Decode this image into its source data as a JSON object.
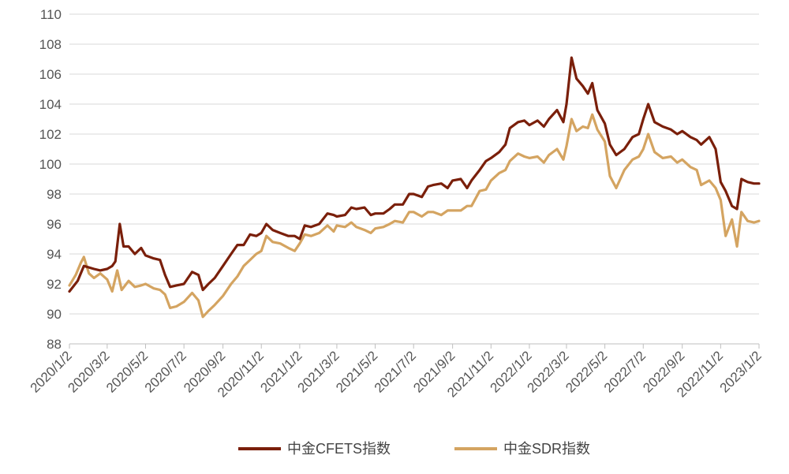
{
  "chart_data": {
    "type": "line",
    "title": "",
    "xlabel": "",
    "ylabel": "",
    "ylim": [
      88,
      110
    ],
    "yticks": [
      88,
      90,
      92,
      94,
      96,
      98,
      100,
      102,
      104,
      106,
      108,
      110
    ],
    "x_tick_labels": [
      "2020/1/2",
      "2020/3/2",
      "2020/5/2",
      "2020/7/2",
      "2020/9/2",
      "2020/11/2",
      "2021/1/2",
      "2021/3/2",
      "2021/5/2",
      "2021/7/2",
      "2021/9/2",
      "2021/11/2",
      "2022/1/2",
      "2022/3/2",
      "2022/5/2",
      "2022/7/2",
      "2022/9/2",
      "2022/11/2",
      "2023/1/2"
    ],
    "grid": true,
    "legend_position": "bottom",
    "series": [
      {
        "name": "中金CFETS指数",
        "color": "#7a1f0a",
        "points": [
          [
            "2020/1/2",
            91.5
          ],
          [
            "2020/1/15",
            92.2
          ],
          [
            "2020/1/25",
            93.2
          ],
          [
            "2020/2/10",
            93.0
          ],
          [
            "2020/2/20",
            92.9
          ],
          [
            "2020/3/2",
            93.0
          ],
          [
            "2020/3/10",
            93.2
          ],
          [
            "2020/3/15",
            93.5
          ],
          [
            "2020/3/22",
            96.0
          ],
          [
            "2020/3/28",
            94.5
          ],
          [
            "2020/4/5",
            94.5
          ],
          [
            "2020/4/15",
            94.0
          ],
          [
            "2020/4/25",
            94.4
          ],
          [
            "2020/5/2",
            93.9
          ],
          [
            "2020/5/15",
            93.7
          ],
          [
            "2020/5/25",
            93.6
          ],
          [
            "2020/6/2",
            92.6
          ],
          [
            "2020/6/10",
            91.8
          ],
          [
            "2020/6/20",
            91.9
          ],
          [
            "2020/7/2",
            92.0
          ],
          [
            "2020/7/15",
            92.8
          ],
          [
            "2020/7/25",
            92.6
          ],
          [
            "2020/8/1",
            91.6
          ],
          [
            "2020/8/10",
            92.0
          ],
          [
            "2020/8/20",
            92.4
          ],
          [
            "2020/9/2",
            93.2
          ],
          [
            "2020/9/15",
            94.0
          ],
          [
            "2020/9/25",
            94.6
          ],
          [
            "2020/10/5",
            94.6
          ],
          [
            "2020/10/15",
            95.3
          ],
          [
            "2020/10/25",
            95.2
          ],
          [
            "2020/11/2",
            95.4
          ],
          [
            "2020/11/10",
            96.0
          ],
          [
            "2020/11/20",
            95.6
          ],
          [
            "2020/12/2",
            95.4
          ],
          [
            "2020/12/15",
            95.2
          ],
          [
            "2020/12/25",
            95.2
          ],
          [
            "2021/1/2",
            95.0
          ],
          [
            "2021/1/10",
            95.9
          ],
          [
            "2021/1/20",
            95.8
          ],
          [
            "2021/2/2",
            96.0
          ],
          [
            "2021/2/15",
            96.7
          ],
          [
            "2021/2/25",
            96.6
          ],
          [
            "2021/3/2",
            96.5
          ],
          [
            "2021/3/15",
            96.6
          ],
          [
            "2021/3/25",
            97.1
          ],
          [
            "2021/4/2",
            97.0
          ],
          [
            "2021/4/15",
            97.1
          ],
          [
            "2021/4/25",
            96.6
          ],
          [
            "2021/5/2",
            96.7
          ],
          [
            "2021/5/15",
            96.7
          ],
          [
            "2021/5/25",
            97.0
          ],
          [
            "2021/6/2",
            97.3
          ],
          [
            "2021/6/15",
            97.3
          ],
          [
            "2021/6/25",
            98.0
          ],
          [
            "2021/7/2",
            98.0
          ],
          [
            "2021/7/15",
            97.8
          ],
          [
            "2021/7/25",
            98.5
          ],
          [
            "2021/8/2",
            98.6
          ],
          [
            "2021/8/15",
            98.7
          ],
          [
            "2021/8/25",
            98.4
          ],
          [
            "2021/9/2",
            98.9
          ],
          [
            "2021/9/15",
            99.0
          ],
          [
            "2021/9/25",
            98.4
          ],
          [
            "2021/10/2",
            98.9
          ],
          [
            "2021/10/15",
            99.6
          ],
          [
            "2021/10/25",
            100.2
          ],
          [
            "2021/11/2",
            100.4
          ],
          [
            "2021/11/15",
            100.8
          ],
          [
            "2021/11/25",
            101.3
          ],
          [
            "2021/12/2",
            102.4
          ],
          [
            "2021/12/15",
            102.8
          ],
          [
            "2021/12/25",
            102.9
          ],
          [
            "2022/1/2",
            102.6
          ],
          [
            "2022/1/15",
            102.9
          ],
          [
            "2022/1/25",
            102.5
          ],
          [
            "2022/2/2",
            103.0
          ],
          [
            "2022/2/15",
            103.6
          ],
          [
            "2022/2/25",
            102.8
          ],
          [
            "2022/3/2",
            104.0
          ],
          [
            "2022/3/10",
            107.1
          ],
          [
            "2022/3/18",
            105.7
          ],
          [
            "2022/3/28",
            105.2
          ],
          [
            "2022/4/5",
            104.7
          ],
          [
            "2022/4/12",
            105.4
          ],
          [
            "2022/4/20",
            103.6
          ],
          [
            "2022/5/2",
            102.7
          ],
          [
            "2022/5/10",
            101.3
          ],
          [
            "2022/5/20",
            100.6
          ],
          [
            "2022/6/2",
            101.0
          ],
          [
            "2022/6/15",
            101.8
          ],
          [
            "2022/6/25",
            102.0
          ],
          [
            "2022/7/2",
            103.0
          ],
          [
            "2022/7/10",
            104.0
          ],
          [
            "2022/7/20",
            102.8
          ],
          [
            "2022/8/2",
            102.5
          ],
          [
            "2022/8/15",
            102.3
          ],
          [
            "2022/8/25",
            102.0
          ],
          [
            "2022/9/2",
            102.2
          ],
          [
            "2022/9/15",
            101.8
          ],
          [
            "2022/9/25",
            101.6
          ],
          [
            "2022/10/2",
            101.3
          ],
          [
            "2022/10/15",
            101.8
          ],
          [
            "2022/10/25",
            101.0
          ],
          [
            "2022/11/2",
            98.8
          ],
          [
            "2022/11/10",
            98.2
          ],
          [
            "2022/11/20",
            97.2
          ],
          [
            "2022/11/28",
            97.0
          ],
          [
            "2022/12/5",
            99.0
          ],
          [
            "2022/12/15",
            98.8
          ],
          [
            "2022/12/25",
            98.7
          ],
          [
            "2023/1/2",
            98.7
          ]
        ]
      },
      {
        "name": "中金SDR指数",
        "color": "#d4a461",
        "points": [
          [
            "2020/1/2",
            91.9
          ],
          [
            "2020/1/12",
            92.6
          ],
          [
            "2020/1/20",
            93.4
          ],
          [
            "2020/1/25",
            93.8
          ],
          [
            "2020/2/2",
            92.7
          ],
          [
            "2020/2/10",
            92.4
          ],
          [
            "2020/2/20",
            92.7
          ],
          [
            "2020/3/2",
            92.3
          ],
          [
            "2020/3/10",
            91.5
          ],
          [
            "2020/3/18",
            92.9
          ],
          [
            "2020/3/25",
            91.6
          ],
          [
            "2020/4/5",
            92.2
          ],
          [
            "2020/4/15",
            91.8
          ],
          [
            "2020/4/25",
            91.9
          ],
          [
            "2020/5/2",
            92.0
          ],
          [
            "2020/5/15",
            91.7
          ],
          [
            "2020/5/25",
            91.6
          ],
          [
            "2020/6/2",
            91.3
          ],
          [
            "2020/6/10",
            90.4
          ],
          [
            "2020/6/20",
            90.5
          ],
          [
            "2020/7/2",
            90.8
          ],
          [
            "2020/7/15",
            91.4
          ],
          [
            "2020/7/25",
            90.9
          ],
          [
            "2020/8/1",
            89.8
          ],
          [
            "2020/8/10",
            90.2
          ],
          [
            "2020/8/20",
            90.6
          ],
          [
            "2020/9/2",
            91.2
          ],
          [
            "2020/9/15",
            92.0
          ],
          [
            "2020/9/25",
            92.5
          ],
          [
            "2020/10/5",
            93.2
          ],
          [
            "2020/10/15",
            93.6
          ],
          [
            "2020/10/25",
            94.0
          ],
          [
            "2020/11/2",
            94.2
          ],
          [
            "2020/11/10",
            95.2
          ],
          [
            "2020/11/20",
            94.8
          ],
          [
            "2020/12/2",
            94.7
          ],
          [
            "2020/12/15",
            94.4
          ],
          [
            "2020/12/25",
            94.2
          ],
          [
            "2021/1/2",
            94.7
          ],
          [
            "2021/1/10",
            95.3
          ],
          [
            "2021/1/20",
            95.2
          ],
          [
            "2021/2/2",
            95.4
          ],
          [
            "2021/2/15",
            95.9
          ],
          [
            "2021/2/25",
            95.5
          ],
          [
            "2021/3/2",
            95.9
          ],
          [
            "2021/3/15",
            95.8
          ],
          [
            "2021/3/25",
            96.1
          ],
          [
            "2021/4/2",
            95.8
          ],
          [
            "2021/4/15",
            95.6
          ],
          [
            "2021/4/25",
            95.4
          ],
          [
            "2021/5/2",
            95.7
          ],
          [
            "2021/5/15",
            95.8
          ],
          [
            "2021/5/25",
            96.0
          ],
          [
            "2021/6/2",
            96.2
          ],
          [
            "2021/6/15",
            96.1
          ],
          [
            "2021/6/25",
            96.8
          ],
          [
            "2021/7/2",
            96.8
          ],
          [
            "2021/7/15",
            96.5
          ],
          [
            "2021/7/25",
            96.8
          ],
          [
            "2021/8/2",
            96.8
          ],
          [
            "2021/8/15",
            96.6
          ],
          [
            "2021/8/25",
            96.9
          ],
          [
            "2021/9/2",
            96.9
          ],
          [
            "2021/9/15",
            96.9
          ],
          [
            "2021/9/25",
            97.2
          ],
          [
            "2021/10/2",
            97.2
          ],
          [
            "2021/10/15",
            98.2
          ],
          [
            "2021/10/25",
            98.3
          ],
          [
            "2021/11/2",
            98.9
          ],
          [
            "2021/11/15",
            99.4
          ],
          [
            "2021/11/25",
            99.6
          ],
          [
            "2021/12/2",
            100.2
          ],
          [
            "2021/12/15",
            100.7
          ],
          [
            "2021/12/25",
            100.5
          ],
          [
            "2022/1/2",
            100.4
          ],
          [
            "2022/1/15",
            100.5
          ],
          [
            "2022/1/25",
            100.1
          ],
          [
            "2022/2/2",
            100.6
          ],
          [
            "2022/2/15",
            101.0
          ],
          [
            "2022/2/25",
            100.3
          ],
          [
            "2022/3/2",
            101.2
          ],
          [
            "2022/3/10",
            103.0
          ],
          [
            "2022/3/18",
            102.2
          ],
          [
            "2022/3/28",
            102.5
          ],
          [
            "2022/4/5",
            102.4
          ],
          [
            "2022/4/12",
            103.3
          ],
          [
            "2022/4/20",
            102.3
          ],
          [
            "2022/5/2",
            101.5
          ],
          [
            "2022/5/10",
            99.2
          ],
          [
            "2022/5/20",
            98.4
          ],
          [
            "2022/6/2",
            99.6
          ],
          [
            "2022/6/15",
            100.3
          ],
          [
            "2022/6/25",
            100.5
          ],
          [
            "2022/7/2",
            101.0
          ],
          [
            "2022/7/10",
            102.0
          ],
          [
            "2022/7/20",
            100.8
          ],
          [
            "2022/8/2",
            100.4
          ],
          [
            "2022/8/15",
            100.5
          ],
          [
            "2022/8/25",
            100.1
          ],
          [
            "2022/9/2",
            100.3
          ],
          [
            "2022/9/15",
            99.8
          ],
          [
            "2022/9/25",
            99.6
          ],
          [
            "2022/10/2",
            98.6
          ],
          [
            "2022/10/15",
            98.9
          ],
          [
            "2022/10/25",
            98.4
          ],
          [
            "2022/11/2",
            97.6
          ],
          [
            "2022/11/10",
            95.2
          ],
          [
            "2022/11/20",
            96.3
          ],
          [
            "2022/11/28",
            94.5
          ],
          [
            "2022/12/5",
            96.8
          ],
          [
            "2022/12/15",
            96.2
          ],
          [
            "2022/12/25",
            96.1
          ],
          [
            "2023/1/2",
            96.2
          ]
        ]
      }
    ]
  }
}
